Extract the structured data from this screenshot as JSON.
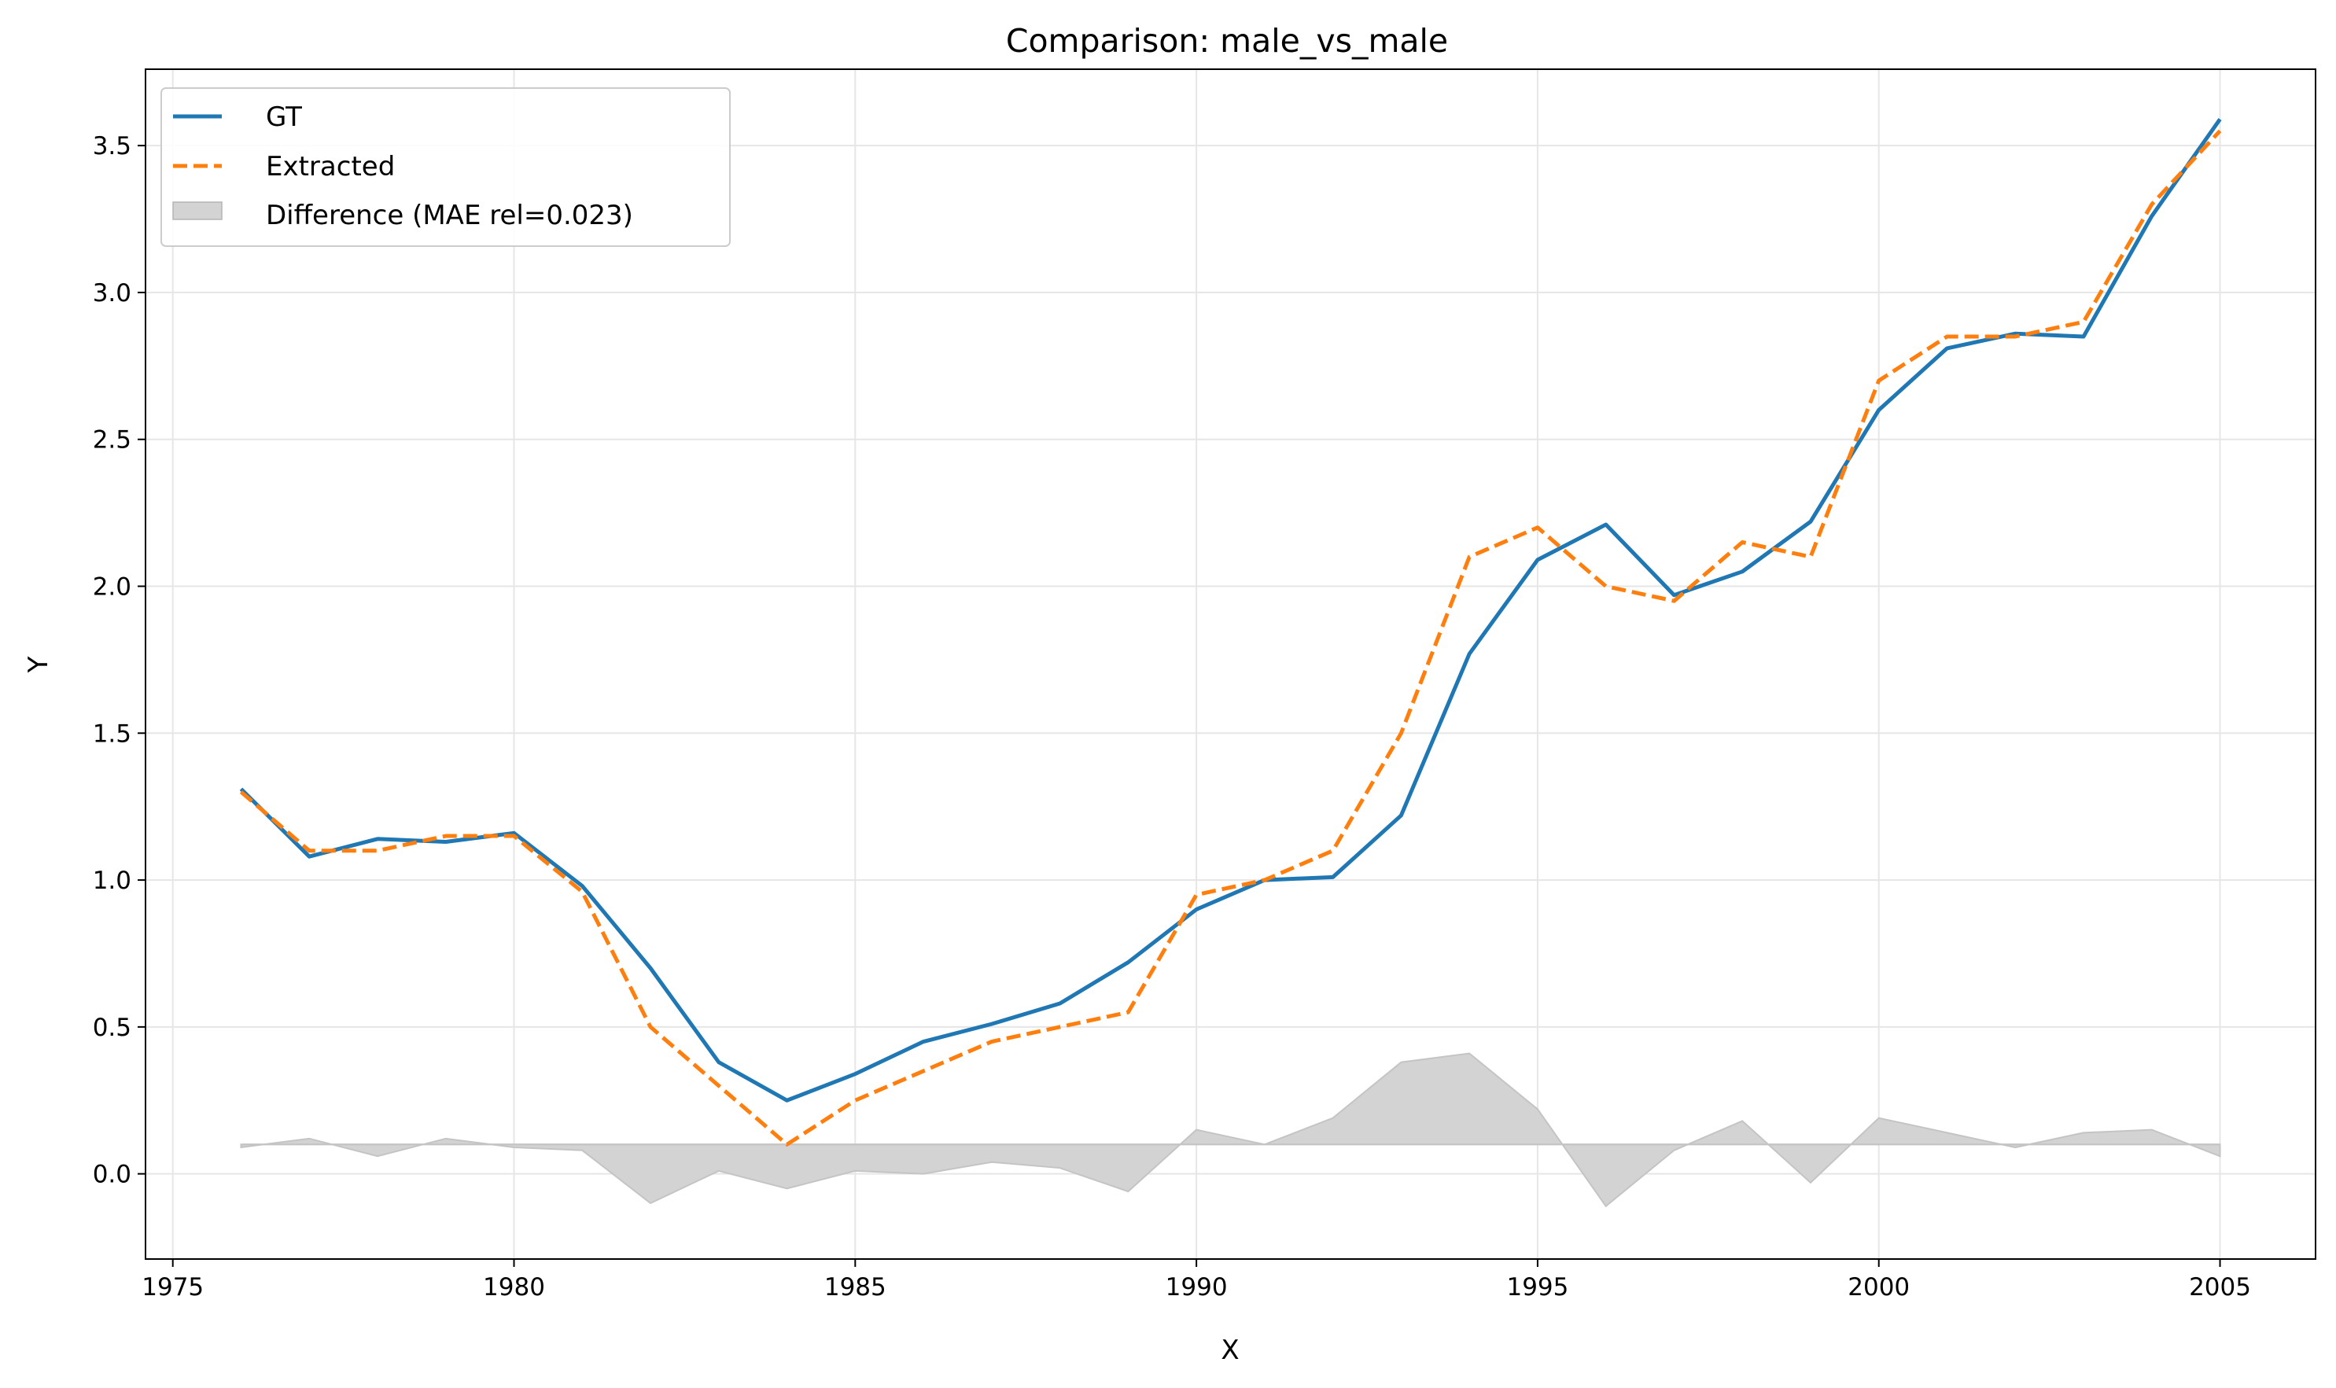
{
  "chart_data": {
    "type": "line",
    "title": "Comparison: male_vs_male",
    "xlabel": "X",
    "ylabel": "Y",
    "xlim": [
      1974.6,
      2006.4
    ],
    "ylim": [
      -0.29,
      3.76
    ],
    "xticks": [
      1975,
      1980,
      1985,
      1990,
      1995,
      2000,
      2005
    ],
    "yticks": [
      0.0,
      0.5,
      1.0,
      1.5,
      2.0,
      2.5,
      3.0,
      3.5
    ],
    "xtick_labels": [
      "1975",
      "1980",
      "1985",
      "1990",
      "1995",
      "2000",
      "2005"
    ],
    "ytick_labels": [
      "0.0",
      "0.5",
      "1.0",
      "1.5",
      "2.0",
      "2.5",
      "3.0",
      "3.5"
    ],
    "grid": true,
    "legend_position": "top-left",
    "x": [
      1976,
      1977,
      1978,
      1979,
      1980,
      1981,
      1982,
      1983,
      1984,
      1985,
      1986,
      1987,
      1988,
      1989,
      1990,
      1991,
      1992,
      1993,
      1994,
      1995,
      1996,
      1997,
      1998,
      1999,
      2000,
      2001,
      2002,
      2003,
      2004,
      2005
    ],
    "series": [
      {
        "name": "GT",
        "color": "#1f77b4",
        "style": "solid",
        "values": [
          1.31,
          1.08,
          1.14,
          1.13,
          1.16,
          0.98,
          0.7,
          0.38,
          0.25,
          0.34,
          0.45,
          0.51,
          0.58,
          0.72,
          0.9,
          1.0,
          1.01,
          1.22,
          1.77,
          2.09,
          2.21,
          1.97,
          2.05,
          2.22,
          2.6,
          2.81,
          2.86,
          2.85,
          3.26,
          3.59
        ]
      },
      {
        "name": "Extracted",
        "color": "#ff7f0e",
        "style": "dashed",
        "values": [
          1.3,
          1.1,
          1.1,
          1.15,
          1.15,
          0.96,
          0.5,
          0.3,
          0.1,
          0.25,
          0.35,
          0.45,
          0.5,
          0.55,
          0.95,
          1.0,
          1.1,
          1.5,
          2.1,
          2.2,
          2.0,
          1.95,
          2.15,
          2.1,
          2.7,
          2.85,
          2.85,
          2.9,
          3.3,
          3.55
        ]
      }
    ],
    "difference": {
      "name": "Difference (MAE rel=0.023)",
      "color": "#d3d3d3",
      "baseline": 0.1,
      "values": [
        0.09,
        0.12,
        0.06,
        0.12,
        0.09,
        0.08,
        -0.1,
        0.01,
        -0.05,
        0.01,
        0.0,
        0.04,
        0.02,
        -0.06,
        0.15,
        0.1,
        0.19,
        0.38,
        0.41,
        0.22,
        -0.11,
        0.08,
        0.18,
        -0.03,
        0.19,
        0.14,
        0.09,
        0.14,
        0.15,
        0.06
      ]
    }
  }
}
